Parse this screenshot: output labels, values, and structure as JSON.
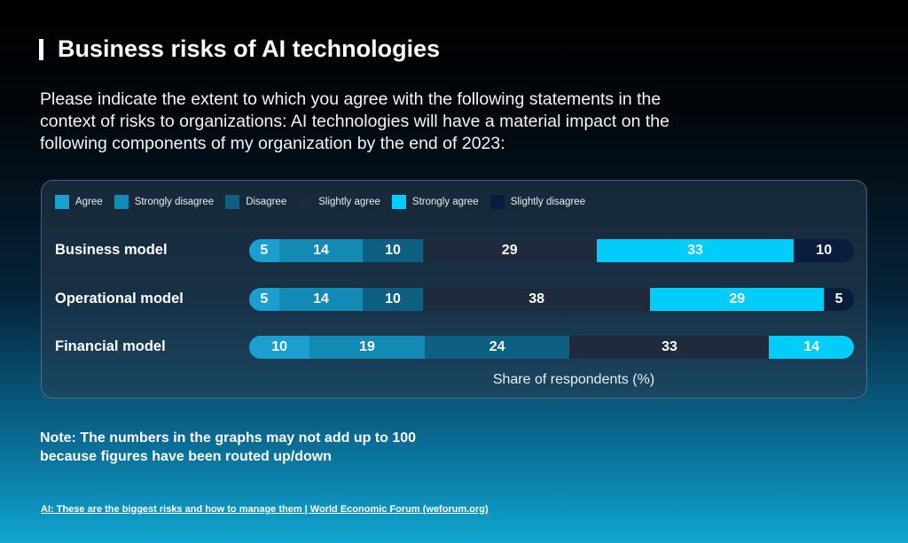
{
  "title": "Business risks of AI technologies",
  "subtitle": "Please indicate the extent to which you agree with the following statements in the context of risks to organizations: AI technologies will have a material impact on the following components of my organization by the end of 2023:",
  "note_line1": "Note: The numbers in the graphs may not add up to 100",
  "note_line2": "because figures have been routed up/down",
  "source": "AI: These are the biggest risks and how to manage them | World Economic Forum (weforum.org)",
  "chart_data": {
    "type": "bar",
    "orientation": "horizontal-stacked",
    "xlabel": "Share of respondents (%)",
    "legend_position": "top-left",
    "legend": [
      {
        "name": "Agree",
        "color": "#1a9fd0"
      },
      {
        "name": "Strongly disagree",
        "color": "#138ab5"
      },
      {
        "name": "Disagree",
        "color": "#0e5f82"
      },
      {
        "name": "Slightly agree",
        "color": "#1e2b3d"
      },
      {
        "name": "Strongly agree",
        "color": "#00cdfa"
      },
      {
        "name": "Slightly disagree",
        "color": "#0b1d3c"
      }
    ],
    "categories": [
      "Business model",
      "Operational model",
      "Financial model"
    ],
    "rows": [
      {
        "segments": [
          {
            "series": "Agree",
            "value": 5
          },
          {
            "series": "Strongly disagree",
            "value": 14
          },
          {
            "series": "Disagree",
            "value": 10
          },
          {
            "series": "Slightly agree",
            "value": 29
          },
          {
            "series": "Strongly agree",
            "value": 33
          },
          {
            "series": "Slightly disagree",
            "value": 10
          }
        ]
      },
      {
        "segments": [
          {
            "series": "Agree",
            "value": 5
          },
          {
            "series": "Strongly disagree",
            "value": 14
          },
          {
            "series": "Disagree",
            "value": 10
          },
          {
            "series": "Slightly agree",
            "value": 38
          },
          {
            "series": "Strongly agree",
            "value": 29
          },
          {
            "series": "Slightly disagree",
            "value": 5
          }
        ]
      },
      {
        "segments": [
          {
            "series": "Agree",
            "value": 10
          },
          {
            "series": "Strongly disagree",
            "value": 19
          },
          {
            "series": "Disagree",
            "value": 24
          },
          {
            "series": "Slightly agree",
            "value": 33
          },
          {
            "series": "Strongly agree",
            "value": 14
          }
        ]
      }
    ]
  }
}
